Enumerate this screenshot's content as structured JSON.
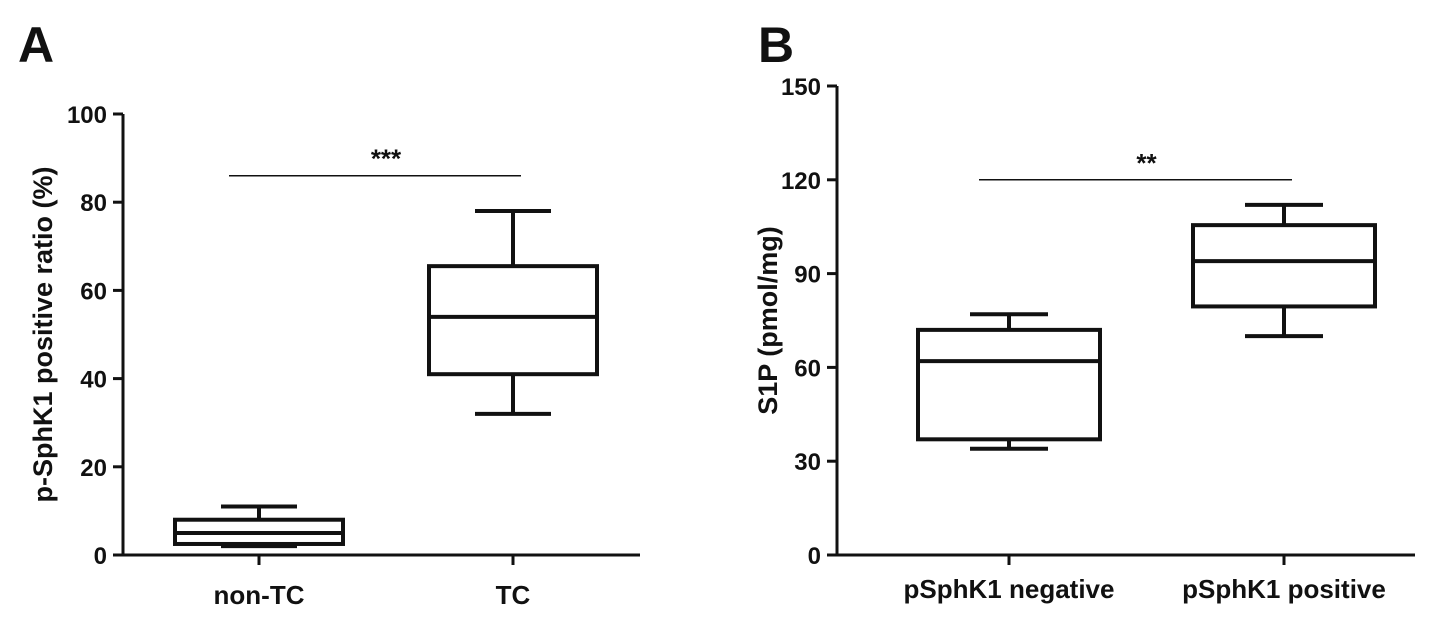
{
  "chart_data": [
    {
      "type": "box",
      "panel": "A",
      "ylabel": "p-SphK1 positive ratio (%)",
      "xlabel": "",
      "ylim": [
        0,
        100
      ],
      "yticks": [
        "0",
        "20",
        "40",
        "60",
        "80",
        "100"
      ],
      "categories": [
        "non-TC",
        "TC"
      ],
      "boxes": [
        {
          "category": "non-TC",
          "min": 2,
          "q1": 2.5,
          "median": 5,
          "q3": 8,
          "max": 11
        },
        {
          "category": "TC",
          "min": 32,
          "q1": 41,
          "median": 54,
          "q3": 65.5,
          "max": 78
        }
      ],
      "significance": {
        "label": "***",
        "from": "non-TC",
        "to": "TC",
        "y": 86
      },
      "grid": false
    },
    {
      "type": "box",
      "panel": "B",
      "ylabel": "S1P (pmol/mg)",
      "xlabel": "",
      "ylim": [
        0,
        150
      ],
      "yticks": [
        "0",
        "30",
        "60",
        "90",
        "120",
        "150"
      ],
      "categories": [
        "pSphK1 negative",
        "pSphK1 positive"
      ],
      "boxes": [
        {
          "category": "pSphK1 negative",
          "min": 34,
          "q1": 37,
          "median": 62,
          "q3": 72,
          "max": 77
        },
        {
          "category": "pSphK1 positive",
          "min": 70,
          "q1": 79.5,
          "median": 94,
          "q3": 105.5,
          "max": 112
        }
      ],
      "significance": {
        "label": "**",
        "from": "pSphK1 negative",
        "to": "pSphK1 positive",
        "y": 120
      },
      "grid": false
    }
  ]
}
